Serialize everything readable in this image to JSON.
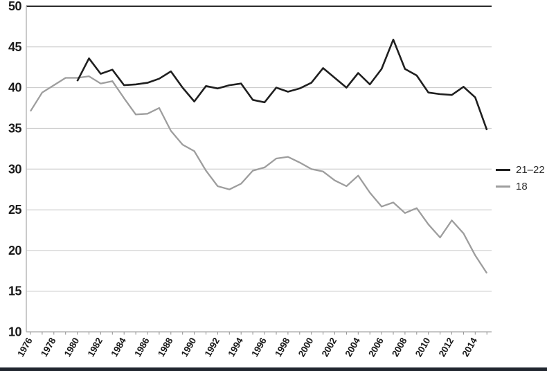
{
  "chart_data": {
    "type": "line",
    "x": [
      1976,
      1977,
      1978,
      1979,
      1980,
      1981,
      1982,
      1983,
      1984,
      1985,
      1986,
      1987,
      1988,
      1989,
      1990,
      1991,
      1992,
      1993,
      1994,
      1995,
      1996,
      1997,
      1998,
      1999,
      2000,
      2001,
      2002,
      2003,
      2004,
      2005,
      2006,
      2007,
      2008,
      2009,
      2010,
      2011,
      2012,
      2013,
      2014,
      2015
    ],
    "series": [
      {
        "name": "21–22",
        "color": "#1f1f1f",
        "values": [
          null,
          null,
          null,
          null,
          40.8,
          43.6,
          41.7,
          42.2,
          40.3,
          40.4,
          40.6,
          41.1,
          42.0,
          40.0,
          38.3,
          40.2,
          39.9,
          40.3,
          40.5,
          38.5,
          38.2,
          40.0,
          39.5,
          39.9,
          40.6,
          42.4,
          41.2,
          40.0,
          41.8,
          40.4,
          42.3,
          45.9,
          42.3,
          41.5,
          39.4,
          39.2,
          39.1,
          40.1,
          38.8,
          34.8
        ]
      },
      {
        "name": "18",
        "color": "#9d9d9d",
        "values": [
          37.1,
          39.4,
          40.3,
          41.2,
          41.2,
          41.4,
          40.5,
          40.8,
          38.7,
          36.7,
          36.8,
          37.5,
          34.7,
          33.0,
          32.2,
          29.8,
          27.9,
          27.5,
          28.2,
          29.8,
          30.2,
          31.3,
          31.5,
          30.8,
          30.0,
          29.7,
          28.6,
          27.9,
          29.2,
          27.1,
          25.4,
          25.9,
          24.6,
          25.2,
          23.2,
          21.6,
          23.7,
          22.1,
          19.4,
          17.2
        ]
      }
    ],
    "title": "",
    "xlabel": "",
    "ylabel": "",
    "ylim": [
      10,
      50
    ],
    "y_ticks": [
      10,
      15,
      20,
      25,
      30,
      35,
      40,
      45,
      50
    ],
    "x_tick_labels": [
      "1976",
      "1978",
      "1980",
      "1982",
      "1984",
      "1986",
      "1988",
      "1990",
      "1992",
      "1994",
      "1996",
      "1998",
      "2000",
      "2002",
      "2004",
      "2006",
      "2008",
      "2010",
      "2012",
      "2014"
    ],
    "x_minor_ticks_every_years": 1,
    "grid": true,
    "legend_position": "right"
  },
  "colors": {
    "grid_line": "#c6c6c6",
    "top_border_line": "#2b2b2b",
    "x_axis_line": "#a3a3a3",
    "y_axis_line": "#b8b8b8",
    "tick_mark": "#8f8f8f",
    "bottom_bar": "#21262f"
  }
}
